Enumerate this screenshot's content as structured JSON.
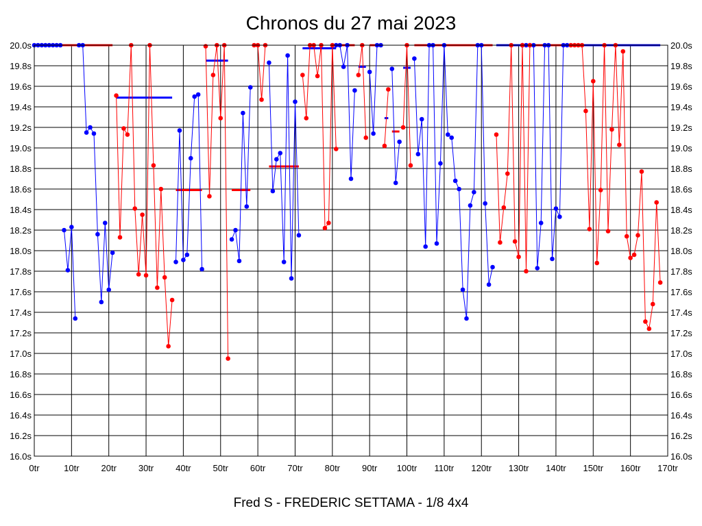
{
  "chart_data": {
    "type": "line",
    "title": "Chronos du 27 mai 2023",
    "subtitle": "Fred S - FREDERIC SETTAMA - 1/8 4x4",
    "xlim": [
      0,
      170
    ],
    "ylim": [
      16.0,
      20.0
    ],
    "grid": true,
    "x_ticks": [
      {
        "value": 0,
        "label": "0tr"
      },
      {
        "value": 10,
        "label": "10tr"
      },
      {
        "value": 20,
        "label": "20tr"
      },
      {
        "value": 30,
        "label": "30tr"
      },
      {
        "value": 40,
        "label": "40tr"
      },
      {
        "value": 50,
        "label": "50tr"
      },
      {
        "value": 60,
        "label": "60tr"
      },
      {
        "value": 70,
        "label": "70tr"
      },
      {
        "value": 80,
        "label": "80tr"
      },
      {
        "value": 90,
        "label": "90tr"
      },
      {
        "value": 100,
        "label": "100tr"
      },
      {
        "value": 110,
        "label": "110tr"
      },
      {
        "value": 120,
        "label": "120tr"
      },
      {
        "value": 130,
        "label": "130tr"
      },
      {
        "value": 140,
        "label": "140tr"
      },
      {
        "value": 150,
        "label": "150tr"
      },
      {
        "value": 160,
        "label": "160tr"
      },
      {
        "value": 170,
        "label": "170tr"
      }
    ],
    "y_ticks": [
      {
        "value": 16.0,
        "label": "16.0s"
      },
      {
        "value": 16.2,
        "label": "16.2s"
      },
      {
        "value": 16.4,
        "label": "16.4s"
      },
      {
        "value": 16.6,
        "label": "16.6s"
      },
      {
        "value": 16.8,
        "label": "16.8s"
      },
      {
        "value": 17.0,
        "label": "17.0s"
      },
      {
        "value": 17.2,
        "label": "17.2s"
      },
      {
        "value": 17.4,
        "label": "17.4s"
      },
      {
        "value": 17.6,
        "label": "17.6s"
      },
      {
        "value": 17.8,
        "label": "17.8s"
      },
      {
        "value": 18.0,
        "label": "18.0s"
      },
      {
        "value": 18.2,
        "label": "18.2s"
      },
      {
        "value": 18.4,
        "label": "18.4s"
      },
      {
        "value": 18.6,
        "label": "18.6s"
      },
      {
        "value": 18.8,
        "label": "18.8s"
      },
      {
        "value": 19.0,
        "label": "19.0s"
      },
      {
        "value": 19.2,
        "label": "19.2s"
      },
      {
        "value": 19.4,
        "label": "19.4s"
      },
      {
        "value": 19.6,
        "label": "19.6s"
      },
      {
        "value": 19.8,
        "label": "19.8s"
      },
      {
        "value": 20.0,
        "label": "20.0s"
      }
    ],
    "series": [
      {
        "color": "#0000ff",
        "points": [
          [
            0,
            20.0
          ],
          [
            1,
            20.0
          ],
          [
            2,
            20.0
          ],
          [
            3,
            20.0
          ],
          [
            4,
            20.0
          ],
          [
            5,
            20.0
          ],
          [
            6,
            20.0
          ],
          [
            7,
            20.0
          ],
          [
            8,
            18.2
          ],
          [
            9,
            17.81
          ],
          [
            10,
            18.23
          ],
          [
            11,
            17.34
          ],
          [
            12,
            20.0
          ],
          [
            13,
            20.0
          ],
          [
            14,
            19.15
          ],
          [
            15,
            19.2
          ],
          [
            16,
            19.14
          ],
          [
            17,
            18.16
          ],
          [
            18,
            17.5
          ],
          [
            19,
            18.27
          ],
          [
            20,
            17.62
          ],
          [
            21,
            17.98
          ],
          [
            38,
            17.89
          ],
          [
            39,
            19.17
          ],
          [
            40,
            17.91
          ],
          [
            41,
            17.96
          ],
          [
            42,
            18.9
          ],
          [
            43,
            19.5
          ],
          [
            44,
            19.52
          ],
          [
            45,
            17.82
          ],
          [
            53,
            18.11
          ],
          [
            54,
            18.2
          ],
          [
            55,
            17.9
          ],
          [
            56,
            19.34
          ],
          [
            57,
            18.43
          ],
          [
            58,
            19.59
          ],
          [
            63,
            19.83
          ],
          [
            64,
            18.58
          ],
          [
            65,
            18.89
          ],
          [
            66,
            18.95
          ],
          [
            67,
            17.89
          ],
          [
            68,
            19.9
          ],
          [
            69,
            17.73
          ],
          [
            70,
            19.45
          ],
          [
            71,
            18.15
          ],
          [
            81,
            20.0
          ],
          [
            82,
            20.0
          ],
          [
            83,
            19.79
          ],
          [
            84,
            20.0
          ],
          [
            85,
            18.7
          ],
          [
            86,
            19.56
          ],
          [
            90,
            19.74
          ],
          [
            91,
            19.14
          ],
          [
            92,
            20.0
          ],
          [
            93,
            20.0
          ],
          [
            96,
            19.77
          ],
          [
            97,
            18.66
          ],
          [
            98,
            19.06
          ],
          [
            102,
            19.87
          ],
          [
            103,
            18.94
          ],
          [
            104,
            19.28
          ],
          [
            105,
            18.04
          ],
          [
            106,
            20.0
          ],
          [
            107,
            20.0
          ],
          [
            108,
            18.07
          ],
          [
            109,
            18.85
          ],
          [
            110,
            20.0
          ],
          [
            111,
            19.13
          ],
          [
            112,
            19.1
          ],
          [
            113,
            18.68
          ],
          [
            114,
            18.6
          ],
          [
            115,
            17.62
          ],
          [
            116,
            17.34
          ],
          [
            117,
            18.44
          ],
          [
            118,
            18.57
          ],
          [
            119,
            20.0
          ],
          [
            120,
            20.0
          ],
          [
            121,
            18.46
          ],
          [
            122,
            17.67
          ],
          [
            123,
            17.84
          ],
          [
            131,
            20.0
          ],
          [
            132,
            20.0
          ],
          [
            133,
            20.0
          ],
          [
            134,
            20.0
          ],
          [
            135,
            17.83
          ],
          [
            136,
            18.27
          ],
          [
            137,
            20.0
          ],
          [
            138,
            20.0
          ],
          [
            139,
            17.92
          ],
          [
            140,
            18.41
          ],
          [
            141,
            18.33
          ],
          [
            142,
            20.0
          ],
          [
            143,
            20.0
          ]
        ],
        "segments": [
          [
            1,
            8
          ],
          [
            8,
            12
          ],
          [
            12,
            22
          ],
          [
            38,
            46
          ],
          [
            53,
            59
          ],
          [
            63,
            72
          ],
          [
            81,
            87
          ],
          [
            90,
            94
          ],
          [
            96,
            99
          ],
          [
            102,
            124
          ],
          [
            131,
            144
          ]
        ]
      },
      {
        "color": "#ff0000",
        "points": [
          [
            22,
            19.51
          ],
          [
            23,
            18.13
          ],
          [
            24,
            19.19
          ],
          [
            25,
            19.13
          ],
          [
            26,
            20.0
          ],
          [
            27,
            18.41
          ],
          [
            28,
            17.77
          ],
          [
            29,
            18.35
          ],
          [
            30,
            17.76
          ],
          [
            31,
            20.0
          ],
          [
            32,
            18.83
          ],
          [
            33,
            17.64
          ],
          [
            34,
            18.6
          ],
          [
            35,
            17.74
          ],
          [
            36,
            17.07
          ],
          [
            37,
            17.52
          ],
          [
            46,
            19.99
          ],
          [
            47,
            18.53
          ],
          [
            48,
            19.71
          ],
          [
            49,
            20.0
          ],
          [
            50,
            19.29
          ],
          [
            51,
            20.0
          ],
          [
            52,
            16.95
          ],
          [
            59,
            20.0
          ],
          [
            60,
            20.0
          ],
          [
            61,
            19.47
          ],
          [
            62,
            20.0
          ],
          [
            72,
            19.71
          ],
          [
            73,
            19.29
          ],
          [
            74,
            20.0
          ],
          [
            75,
            20.0
          ],
          [
            76,
            19.7
          ],
          [
            77,
            20.0
          ],
          [
            78,
            18.22
          ],
          [
            79,
            18.27
          ],
          [
            80,
            20.0
          ],
          [
            81,
            18.99
          ],
          [
            87,
            19.71
          ],
          [
            88,
            20.0
          ],
          [
            89,
            19.1
          ],
          [
            94,
            19.02
          ],
          [
            95,
            19.57
          ],
          [
            99,
            19.2
          ],
          [
            100,
            20.0
          ],
          [
            101,
            18.83
          ],
          [
            124,
            19.13
          ],
          [
            125,
            18.08
          ],
          [
            126,
            18.42
          ],
          [
            127,
            18.75
          ],
          [
            128,
            20.0
          ],
          [
            129,
            18.09
          ],
          [
            130,
            17.94
          ],
          [
            131,
            20.0
          ],
          [
            132,
            17.8
          ],
          [
            133,
            20.0
          ],
          [
            144,
            20.0
          ],
          [
            145,
            20.0
          ],
          [
            146,
            20.0
          ],
          [
            147,
            20.0
          ],
          [
            148,
            19.36
          ],
          [
            149,
            18.21
          ],
          [
            150,
            19.65
          ],
          [
            151,
            17.88
          ],
          [
            152,
            18.59
          ],
          [
            153,
            20.0
          ],
          [
            154,
            18.19
          ],
          [
            155,
            19.18
          ],
          [
            156,
            20.0
          ],
          [
            157,
            19.03
          ],
          [
            158,
            19.94
          ],
          [
            159,
            18.14
          ],
          [
            160,
            17.93
          ],
          [
            161,
            17.96
          ],
          [
            162,
            18.15
          ],
          [
            163,
            18.77
          ],
          [
            164,
            17.31
          ],
          [
            165,
            17.24
          ],
          [
            166,
            17.48
          ],
          [
            167,
            18.47
          ],
          [
            168,
            17.69
          ]
        ],
        "segments": [
          [
            22,
            38
          ],
          [
            46,
            53
          ],
          [
            59,
            63
          ],
          [
            72,
            82
          ],
          [
            87,
            90
          ],
          [
            94,
            96
          ],
          [
            99,
            102
          ],
          [
            124,
            134
          ],
          [
            144,
            169
          ]
        ]
      }
    ],
    "reference_lines": [
      {
        "color": "#ff0000",
        "x1": 0,
        "x2": 21,
        "y": 20.0
      },
      {
        "color": "#0000ff",
        "x1": 22,
        "x2": 37,
        "y": 19.49
      },
      {
        "color": "#ff0000",
        "x1": 38,
        "x2": 45,
        "y": 18.59
      },
      {
        "color": "#0000ff",
        "x1": 46,
        "x2": 52,
        "y": 19.85
      },
      {
        "color": "#ff0000",
        "x1": 53,
        "x2": 58,
        "y": 18.59
      },
      {
        "color": "#ff0000",
        "x1": 63,
        "x2": 71,
        "y": 18.82
      },
      {
        "color": "#0000ff",
        "x1": 72,
        "x2": 81,
        "y": 19.97
      },
      {
        "color": "#ff0000",
        "x1": 81,
        "x2": 86,
        "y": 20.0
      },
      {
        "color": "#0000ff",
        "x1": 87,
        "x2": 89,
        "y": 19.79
      },
      {
        "color": "#ff0000",
        "x1": 90,
        "x2": 93,
        "y": 20.0
      },
      {
        "color": "#0000ff",
        "x1": 94,
        "x2": 95,
        "y": 19.29
      },
      {
        "color": "#ff0000",
        "x1": 96,
        "x2": 98,
        "y": 19.16
      },
      {
        "color": "#0000ff",
        "x1": 99,
        "x2": 101,
        "y": 19.78
      },
      {
        "color": "#ff0000",
        "x1": 102,
        "x2": 123,
        "y": 20.0
      },
      {
        "color": "#0000ff",
        "x1": 124,
        "x2": 133,
        "y": 20.0
      },
      {
        "color": "#ff0000",
        "x1": 131,
        "x2": 143,
        "y": 20.0
      },
      {
        "color": "#0000ff",
        "x1": 144,
        "x2": 168,
        "y": 20.0
      }
    ]
  }
}
